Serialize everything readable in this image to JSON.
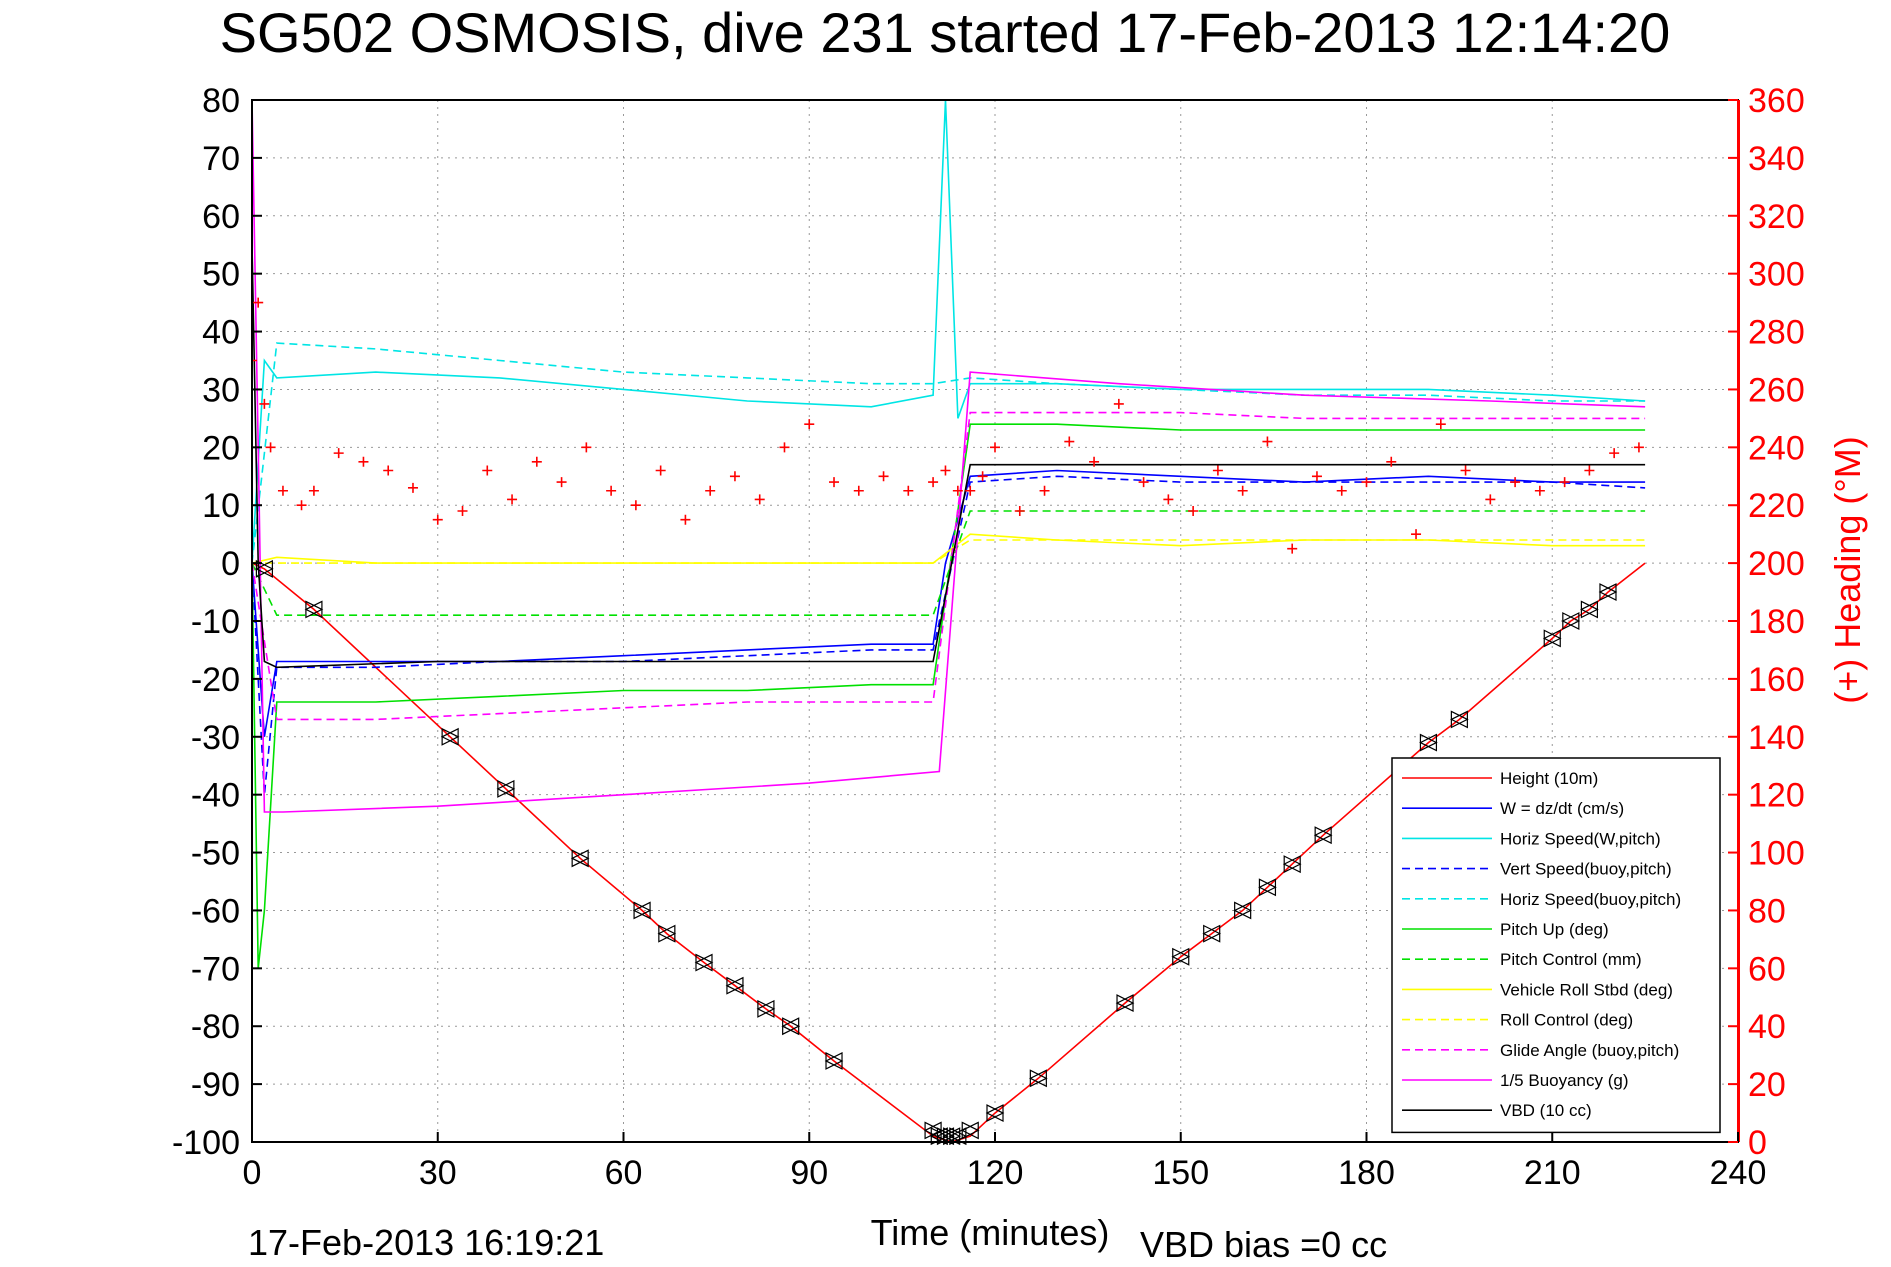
{
  "chart_data": {
    "type": "line",
    "title": "SG502 OSMOSIS, dive 231 started 17-Feb-2013 12:14:20",
    "xlabel": "Time (minutes)",
    "ylabel_left": "",
    "ylabel_right": "(+) Heading (°M)",
    "xlim": [
      0,
      240
    ],
    "ylim_left": [
      -100,
      80
    ],
    "ylim_right": [
      0,
      360
    ],
    "xticks": [
      "0",
      "30",
      "60",
      "90",
      "120",
      "150",
      "180",
      "210",
      "240"
    ],
    "yticks_left": [
      "80",
      "70",
      "60",
      "50",
      "40",
      "30",
      "20",
      "10",
      "0",
      "-10",
      "-20",
      "-30",
      "-40",
      "-50",
      "-60",
      "-70",
      "-80",
      "-90",
      "-100"
    ],
    "yticks_right": [
      "360",
      "340",
      "320",
      "300",
      "280",
      "260",
      "240",
      "220",
      "200",
      "180",
      "160",
      "140",
      "120",
      "100",
      "80",
      "60",
      "40",
      "20",
      "0"
    ],
    "grid": true,
    "legend_position": "bottom-right",
    "footer_left": "17-Feb-2013 16:19:21",
    "footer_right": "VBD bias =0 cc",
    "series": [
      {
        "name": "Height (10m)",
        "color": "#ff0000",
        "style": "solid",
        "x": [
          0,
          2,
          10,
          32,
          41,
          53,
          63,
          67,
          73,
          78,
          83,
          87,
          94,
          110,
          113,
          116,
          120,
          127,
          141,
          150,
          155,
          160,
          164,
          168,
          173,
          190,
          195,
          210,
          213,
          216,
          219,
          225
        ],
        "y": [
          0,
          -1,
          -8,
          -30,
          -39,
          -51,
          -60,
          -64,
          -69,
          -73,
          -77,
          -80,
          -86,
          -99,
          -100,
          -99,
          -95,
          -89,
          -76,
          -68,
          -64,
          -60,
          -56,
          -52,
          -47,
          -31,
          -27,
          -13,
          -10,
          -8,
          -5,
          0
        ]
      },
      {
        "name": "W = dz/dt (cm/s)",
        "color": "#0000ff",
        "style": "solid",
        "x": [
          0,
          2,
          4,
          20,
          40,
          60,
          80,
          100,
          110,
          112,
          116,
          130,
          150,
          170,
          190,
          210,
          225
        ],
        "y": [
          0,
          -30,
          -17,
          -17,
          -17,
          -16,
          -15,
          -14,
          -14,
          0,
          15,
          16,
          15,
          14,
          15,
          14,
          14
        ]
      },
      {
        "name": "Horiz Speed(W,pitch)",
        "color": "#00e5e5",
        "style": "solid",
        "x": [
          0,
          2,
          4,
          20,
          40,
          60,
          80,
          100,
          110,
          112,
          114,
          116,
          130,
          150,
          170,
          190,
          210,
          225
        ],
        "y": [
          0,
          35,
          32,
          33,
          32,
          30,
          28,
          27,
          29,
          80,
          25,
          31,
          31,
          30,
          30,
          30,
          29,
          28
        ]
      },
      {
        "name": "Vert Speed(buoy,pitch)",
        "color": "#0000ff",
        "style": "dashed",
        "x": [
          0,
          2,
          4,
          20,
          40,
          60,
          80,
          100,
          110,
          116,
          130,
          150,
          170,
          190,
          210,
          225
        ],
        "y": [
          0,
          -40,
          -18,
          -18,
          -17,
          -17,
          -16,
          -15,
          -15,
          14,
          15,
          14,
          14,
          14,
          14,
          13
        ]
      },
      {
        "name": "Horiz Speed(buoy,pitch)",
        "color": "#00e5e5",
        "style": "dashed",
        "x": [
          0,
          4,
          20,
          40,
          60,
          80,
          100,
          110,
          116,
          130,
          150,
          170,
          190,
          210,
          225
        ],
        "y": [
          0,
          38,
          37,
          35,
          33,
          32,
          31,
          31,
          32,
          31,
          30,
          29,
          29,
          28,
          28
        ]
      },
      {
        "name": "Pitch Up (deg)",
        "color": "#00e000",
        "style": "solid",
        "x": [
          0,
          1,
          2,
          4,
          20,
          40,
          60,
          80,
          100,
          110,
          116,
          130,
          150,
          170,
          190,
          210,
          225
        ],
        "y": [
          0,
          -70,
          -60,
          -24,
          -24,
          -23,
          -22,
          -22,
          -21,
          -21,
          24,
          24,
          23,
          23,
          23,
          23,
          23
        ]
      },
      {
        "name": "Pitch Control (mm)",
        "color": "#00e000",
        "style": "dashed",
        "x": [
          0,
          4,
          110,
          116,
          225
        ],
        "y": [
          0,
          -9,
          -9,
          9,
          9
        ]
      },
      {
        "name": "Vehicle Roll Stbd (deg)",
        "color": "#ffff00",
        "style": "solid",
        "x": [
          0,
          4,
          20,
          40,
          60,
          80,
          100,
          110,
          116,
          130,
          150,
          170,
          190,
          210,
          225
        ],
        "y": [
          0,
          1,
          0,
          0,
          0,
          0,
          0,
          0,
          5,
          4,
          3,
          4,
          4,
          3,
          3
        ]
      },
      {
        "name": "Roll Control (deg)",
        "color": "#ffff00",
        "style": "dashed",
        "x": [
          0,
          4,
          110,
          116,
          225
        ],
        "y": [
          0,
          0,
          0,
          4,
          4
        ]
      },
      {
        "name": "Glide Angle (buoy,pitch)",
        "color": "#ff00ff",
        "style": "dashed",
        "x": [
          0,
          4,
          20,
          40,
          60,
          80,
          100,
          110,
          116,
          130,
          150,
          170,
          190,
          210,
          225
        ],
        "y": [
          0,
          -27,
          -27,
          -26,
          -25,
          -24,
          -24,
          -24,
          26,
          26,
          26,
          25,
          25,
          25,
          25
        ]
      },
      {
        "name": "1/5 Buoyancy (g)",
        "color": "#ff00ff",
        "style": "solid",
        "x": [
          0,
          1,
          2,
          5,
          30,
          60,
          90,
          111,
          116,
          140,
          170,
          200,
          225
        ],
        "y": [
          80,
          20,
          -43,
          -43,
          -42,
          -40,
          -38,
          -36,
          33,
          31,
          29,
          28,
          27
        ]
      },
      {
        "name": "VBD (10 cc)",
        "color": "#000000",
        "style": "solid",
        "x": [
          0,
          1,
          2,
          4,
          30,
          60,
          90,
          110,
          116,
          140,
          170,
          200,
          225
        ],
        "y": [
          55,
          0,
          -17,
          -18,
          -17,
          -17,
          -17,
          -17,
          17,
          17,
          17,
          17,
          17
        ]
      }
    ],
    "heading": {
      "name": "(+) Heading",
      "color": "#ff0000",
      "x": [
        0,
        1,
        2,
        3,
        5,
        8,
        10,
        14,
        18,
        22,
        26,
        30,
        34,
        38,
        42,
        46,
        50,
        54,
        58,
        62,
        66,
        70,
        74,
        78,
        82,
        86,
        90,
        94,
        98,
        102,
        106,
        110,
        112,
        114,
        116,
        118,
        120,
        124,
        128,
        132,
        136,
        140,
        144,
        148,
        152,
        156,
        160,
        164,
        168,
        172,
        176,
        180,
        184,
        188,
        192,
        196,
        200,
        204,
        208,
        212,
        216,
        220,
        224
      ],
      "y": [
        270,
        290,
        255,
        240,
        225,
        220,
        225,
        238,
        235,
        232,
        226,
        215,
        218,
        232,
        222,
        235,
        228,
        240,
        225,
        220,
        232,
        215,
        225,
        230,
        222,
        240,
        248,
        228,
        225,
        230,
        225,
        228,
        232,
        225,
        225,
        230,
        240,
        218,
        225,
        242,
        235,
        255,
        228,
        222,
        218,
        232,
        225,
        242,
        205,
        230,
        225,
        228,
        235,
        210,
        248,
        232,
        222,
        228,
        225,
        228,
        232,
        238,
        240
      ]
    },
    "markers": {
      "name": "",
      "color": "#000000",
      "x": [
        2,
        10,
        32,
        41,
        53,
        63,
        67,
        73,
        78,
        83,
        87,
        94,
        110,
        111,
        112,
        113,
        114,
        116,
        120,
        127,
        141,
        150,
        155,
        160,
        164,
        168,
        173,
        190,
        195,
        210,
        213,
        216,
        219
      ],
      "y": [
        -1,
        -8,
        -30,
        -39,
        -51,
        -60,
        -64,
        -69,
        -73,
        -77,
        -80,
        -86,
        -98,
        -99,
        -99,
        -99,
        -99,
        -98,
        -95,
        -89,
        -76,
        -68,
        -64,
        -60,
        -56,
        -52,
        -47,
        -31,
        -27,
        -13,
        -10,
        -8,
        -5
      ]
    }
  }
}
